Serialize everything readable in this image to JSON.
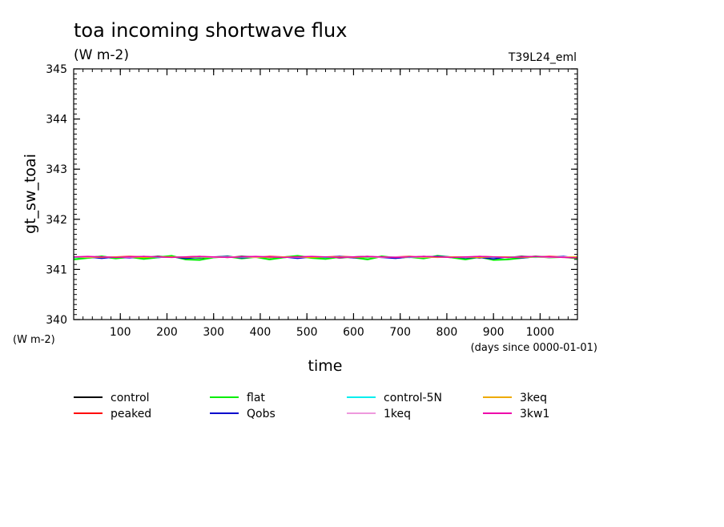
{
  "chart_data": {
    "type": "line",
    "title": "toa incoming shortwave flux",
    "units": "(W m-2)",
    "run_label": "T39L24_eml",
    "ylabel": "gt_sw_toai",
    "y_units_label": "(W m-2)",
    "xlabel": "time",
    "x_units_label": "(days since 0000-01-01)",
    "xlim": [
      0,
      1080
    ],
    "ylim": [
      340,
      345
    ],
    "x_ticks": [
      100,
      200,
      300,
      400,
      500,
      600,
      700,
      800,
      900,
      1000
    ],
    "x_tick_labels": [
      "100",
      "200",
      "300",
      "400",
      "500",
      "600",
      "700",
      "800",
      "900",
      "1000"
    ],
    "y_ticks": [
      340,
      341,
      342,
      343,
      344,
      345
    ],
    "y_tick_labels": [
      "340",
      "341",
      "342",
      "343",
      "344",
      "345"
    ],
    "grid": false,
    "legend_position": "below",
    "x": [
      0,
      30,
      60,
      90,
      120,
      150,
      180,
      210,
      240,
      270,
      300,
      330,
      360,
      390,
      420,
      450,
      480,
      510,
      540,
      570,
      600,
      630,
      660,
      690,
      720,
      750,
      780,
      810,
      840,
      870,
      900,
      930,
      960,
      990,
      1020,
      1050,
      1080
    ],
    "series": [
      {
        "name": "control",
        "color": "#000000",
        "values": [
          341.25,
          341.24,
          341.26,
          341.23,
          341.25,
          341.24,
          341.26,
          341.25,
          341.24,
          341.23,
          341.25,
          341.24,
          341.26,
          341.25,
          341.24,
          341.25,
          341.26,
          341.24,
          341.25,
          341.23,
          341.25,
          341.26,
          341.24,
          341.25,
          341.24,
          341.26,
          341.25,
          341.24,
          341.25,
          341.23,
          341.25,
          341.24,
          341.26,
          341.25,
          341.24,
          341.25,
          341.24
        ]
      },
      {
        "name": "peaked",
        "color": "#ff0000",
        "values": [
          341.25,
          341.25,
          341.24,
          341.25,
          341.26,
          341.25,
          341.24,
          341.25,
          341.25,
          341.26,
          341.24,
          341.25,
          341.25,
          341.24,
          341.26,
          341.25,
          341.25,
          341.24,
          341.25,
          341.26,
          341.25,
          341.24,
          341.25,
          341.25,
          341.26,
          341.24,
          341.25,
          341.25,
          341.24,
          341.26,
          341.25,
          341.25,
          341.24,
          341.25,
          341.26,
          341.25,
          341.25
        ]
      },
      {
        "name": "flat",
        "color": "#00ee00",
        "values": [
          341.2,
          341.23,
          341.26,
          341.22,
          341.25,
          341.21,
          341.24,
          341.27,
          341.2,
          341.19,
          341.24,
          341.26,
          341.22,
          341.25,
          341.2,
          341.24,
          341.27,
          341.23,
          341.21,
          341.25,
          341.24,
          341.2,
          341.26,
          341.23,
          341.25,
          341.22,
          341.27,
          341.24,
          341.2,
          341.25,
          341.19,
          341.2,
          341.23,
          341.26,
          341.24,
          341.25,
          341.22
        ]
      },
      {
        "name": "Qobs",
        "color": "#0000cc",
        "values": [
          341.24,
          341.25,
          341.22,
          341.25,
          341.23,
          341.26,
          341.24,
          341.25,
          341.22,
          341.24,
          341.25,
          341.26,
          341.23,
          341.25,
          341.24,
          341.25,
          341.22,
          341.25,
          341.24,
          341.26,
          341.23,
          341.25,
          341.24,
          341.22,
          341.25,
          341.24,
          341.26,
          341.25,
          341.23,
          341.24,
          341.21,
          341.25,
          341.23,
          341.25,
          341.24,
          341.26,
          341.23
        ]
      },
      {
        "name": "control-5N",
        "color": "#00eeee",
        "values": [
          341.24,
          341.25,
          341.25,
          341.24,
          341.25,
          341.25,
          341.24,
          341.25,
          341.25,
          341.24,
          341.25,
          341.25,
          341.24,
          341.25,
          341.25,
          341.24,
          341.25,
          341.25,
          341.24,
          341.25,
          341.25,
          341.24,
          341.25,
          341.25,
          341.24,
          341.25,
          341.25,
          341.24,
          341.25,
          341.25,
          341.24,
          341.25,
          341.25,
          341.24,
          341.25,
          341.25,
          341.24
        ]
      },
      {
        "name": "1keq",
        "color": "#ee99dd",
        "values": [
          341.25,
          341.24,
          341.25,
          341.25,
          341.24,
          341.25,
          341.25,
          341.24,
          341.25,
          341.25,
          341.24,
          341.25,
          341.25,
          341.24,
          341.25,
          341.25,
          341.24,
          341.25,
          341.25,
          341.24,
          341.25,
          341.25,
          341.24,
          341.25,
          341.25,
          341.24,
          341.25,
          341.25,
          341.24,
          341.25,
          341.25,
          341.24,
          341.25,
          341.25,
          341.24,
          341.25,
          341.25
        ]
      },
      {
        "name": "3keq",
        "color": "#eeaa00",
        "values": [
          341.25,
          341.25,
          341.24,
          341.25,
          341.25,
          341.24,
          341.25,
          341.25,
          341.24,
          341.25,
          341.25,
          341.24,
          341.25,
          341.25,
          341.24,
          341.25,
          341.25,
          341.24,
          341.25,
          341.25,
          341.24,
          341.25,
          341.25,
          341.24,
          341.25,
          341.25,
          341.24,
          341.25,
          341.25,
          341.24,
          341.25,
          341.25,
          341.24,
          341.25,
          341.25,
          341.24,
          341.25
        ]
      },
      {
        "name": "3kw1",
        "color": "#ee00aa",
        "values": [
          341.25,
          341.26,
          341.25,
          341.24,
          341.25,
          341.26,
          341.25,
          341.24,
          341.25,
          341.26,
          341.25,
          341.24,
          341.25,
          341.26,
          341.25,
          341.24,
          341.25,
          341.26,
          341.25,
          341.24,
          341.25,
          341.26,
          341.25,
          341.24,
          341.25,
          341.26,
          341.25,
          341.24,
          341.25,
          341.26,
          341.25,
          341.24,
          341.25,
          341.26,
          341.25,
          341.24,
          341.23
        ]
      }
    ]
  }
}
